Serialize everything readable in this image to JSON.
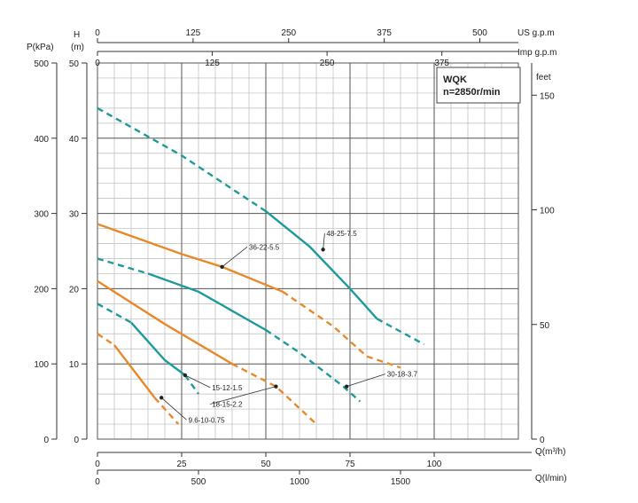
{
  "chart_data": {
    "type": "line",
    "title": "WQK",
    "subtitle": "n=2850r/min",
    "x_label_m3h": "Q(m³/h)",
    "x_label_lmin": "Q(l/min)",
    "x_label_usgpm": "US g.p.m",
    "x_label_impgpm": "Imp g.p.m",
    "y_label_h": "H",
    "y_label_h_unit": "(m)",
    "y_label_p": "P(kPa)",
    "y_label_feet": "feet",
    "xlim": [
      0,
      125
    ],
    "ylim": [
      0,
      50
    ],
    "x_ticks_m3h": [
      "0",
      "25",
      "50",
      "75",
      "100"
    ],
    "x_ticks_lmin": [
      "0",
      "500",
      "1000",
      "1500"
    ],
    "x_ticks_usgpm": [
      "0",
      "125",
      "250",
      "375",
      "500"
    ],
    "x_ticks_impgpm": [
      "0",
      "125",
      "250",
      "375"
    ],
    "y_ticks_h": [
      "0",
      "10",
      "20",
      "30",
      "40",
      "50"
    ],
    "y_ticks_kpa": [
      "0",
      "100",
      "200",
      "300",
      "400",
      "500"
    ],
    "y_ticks_feet": [
      "0",
      "50",
      "100",
      "150"
    ],
    "grid": true,
    "series": [
      {
        "name": "48-25-7.5",
        "color": "#1e9a9a",
        "points": [
          [
            0,
            44
          ],
          [
            25,
            37.7
          ],
          [
            50,
            30.3
          ],
          [
            63,
            25.6
          ],
          [
            75,
            20
          ],
          [
            83,
            16
          ],
          [
            97,
            12.6
          ]
        ],
        "solid_range": [
          50,
          83
        ]
      },
      {
        "name": "36-22-5.5",
        "color": "#e8892c",
        "points": [
          [
            0,
            28.6
          ],
          [
            25,
            24.6
          ],
          [
            37,
            22.9
          ],
          [
            55,
            19.6
          ],
          [
            70,
            15
          ],
          [
            80,
            11
          ],
          [
            90,
            9.5
          ]
        ],
        "solid_range": [
          0,
          55
        ]
      },
      {
        "name": "30-18-3.7",
        "color": "#1e9a9a",
        "points": [
          [
            0,
            24
          ],
          [
            15,
            22
          ],
          [
            30,
            19.6
          ],
          [
            50,
            14.5
          ],
          [
            60,
            11.5
          ],
          [
            73,
            7
          ],
          [
            78,
            5
          ]
        ],
        "solid_range": [
          15,
          50
        ]
      },
      {
        "name": "18-15-2.2",
        "color": "#e8892c",
        "points": [
          [
            0,
            21
          ],
          [
            20,
            15.3
          ],
          [
            40,
            10
          ],
          [
            53,
            7
          ],
          [
            65,
            2
          ]
        ],
        "solid_range": [
          0,
          40
        ]
      },
      {
        "name": "15-12-1.5",
        "color": "#1e9a9a",
        "points": [
          [
            0,
            18
          ],
          [
            10,
            15.5
          ],
          [
            20,
            10.5
          ],
          [
            26,
            8.5
          ],
          [
            30,
            6
          ]
        ],
        "solid_range": [
          10,
          26
        ]
      },
      {
        "name": "9.6-10-0.75",
        "color": "#e8892c",
        "points": [
          [
            0,
            14
          ],
          [
            5,
            12.5
          ],
          [
            17,
            5.5
          ],
          [
            20,
            4
          ],
          [
            24,
            2
          ]
        ],
        "solid_range": [
          5,
          17
        ]
      }
    ],
    "labels": [
      {
        "series": "48-25-7.5",
        "text": "48-25-7.5",
        "marker": [
          67,
          25.2
        ],
        "text_pos": [
          68,
          27
        ]
      },
      {
        "series": "36-22-5.5",
        "text": "36-22-5.5",
        "marker": [
          37,
          22.9
        ],
        "text_pos": [
          45,
          25.2
        ]
      },
      {
        "series": "30-18-3.7",
        "text": "30-18-3.7",
        "marker": [
          74,
          7
        ],
        "text_pos": [
          86,
          8.3
        ]
      },
      {
        "series": "15-12-1.5",
        "text": "15-12-1.5",
        "marker": [
          26,
          8.5
        ],
        "text_pos": [
          34,
          6.5
        ]
      },
      {
        "series": "18-15-2.2",
        "text": "18-15-2.2",
        "marker": [
          53,
          7
        ],
        "text_pos": [
          34,
          4.3
        ]
      },
      {
        "series": "9.6-10-0.75",
        "text": "9.6-10-0.75",
        "marker": [
          19,
          5.5
        ],
        "text_pos": [
          27,
          2.2
        ]
      }
    ]
  }
}
